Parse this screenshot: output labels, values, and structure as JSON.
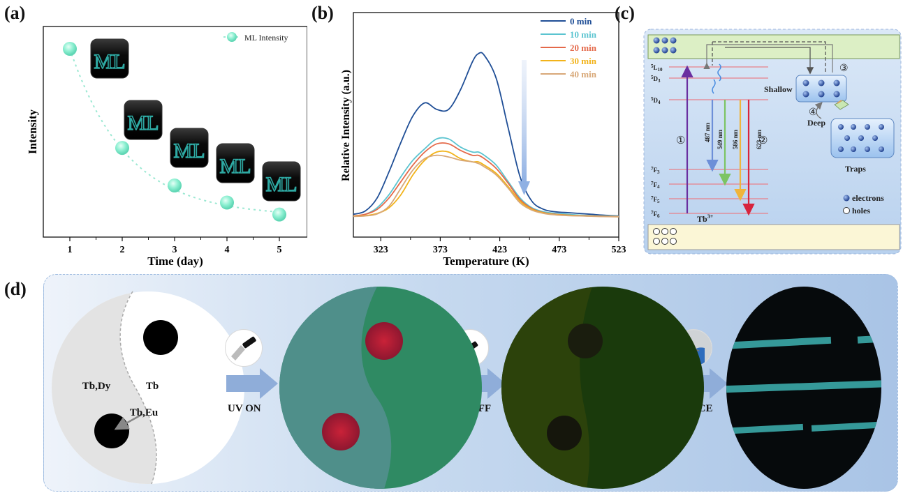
{
  "panels": {
    "a": "(a)",
    "b": "(b)",
    "c": "(c)",
    "d": "(d)"
  },
  "panel_a": {
    "xlabel": "Time (day)",
    "ylabel": "Intensity",
    "legend": "ML Intensity",
    "x_ticks": [
      "1",
      "2",
      "3",
      "4",
      "5"
    ],
    "inset_text": "ML",
    "marker_color": "#7fe8c9"
  },
  "panel_b": {
    "xlabel": "Temperature (K)",
    "ylabel": "Relative Intensity (a.u.)",
    "x_ticks": [
      "323",
      "373",
      "423",
      "473",
      "523"
    ]
  },
  "chart_data": [
    {
      "type": "scatter",
      "x": [
        1,
        2,
        3,
        4,
        5
      ],
      "y": [
        1.0,
        0.42,
        0.2,
        0.1,
        0.03
      ],
      "xlabel": "Time (day)",
      "ylabel": "Intensity",
      "legend": "top-right",
      "series": [
        {
          "name": "ML Intensity",
          "color": "#7fe8c9"
        }
      ]
    },
    {
      "type": "line",
      "xlabel": "Temperature (K)",
      "ylabel": "Relative Intensity (a.u.)",
      "xlim": [
        300,
        523
      ],
      "legend": "top-right",
      "series": [
        {
          "name": "0   min",
          "color": "#1f4e96",
          "x": [
            300,
            310,
            320,
            330,
            340,
            350,
            360,
            370,
            380,
            390,
            400,
            405,
            410,
            420,
            430,
            440,
            450,
            460,
            470,
            480,
            490,
            500,
            510,
            523
          ],
          "y": [
            0.02,
            0.04,
            0.12,
            0.28,
            0.46,
            0.62,
            0.7,
            0.66,
            0.66,
            0.78,
            0.95,
            1.0,
            0.99,
            0.85,
            0.55,
            0.25,
            0.1,
            0.05,
            0.035,
            0.03,
            0.025,
            0.02,
            0.015,
            0.01
          ]
        },
        {
          "name": "10 min",
          "color": "#5bc4d0",
          "x": [
            300,
            310,
            320,
            330,
            340,
            350,
            360,
            370,
            380,
            390,
            400,
            405,
            410,
            420,
            430,
            440,
            450,
            460,
            470,
            480,
            490,
            500,
            510,
            523
          ],
          "y": [
            0.01,
            0.02,
            0.06,
            0.14,
            0.25,
            0.35,
            0.42,
            0.48,
            0.48,
            0.43,
            0.4,
            0.4,
            0.38,
            0.32,
            0.22,
            0.12,
            0.06,
            0.035,
            0.025,
            0.02,
            0.015,
            0.012,
            0.01,
            0.008
          ]
        },
        {
          "name": "20 min",
          "color": "#e4694a",
          "x": [
            300,
            310,
            320,
            330,
            340,
            350,
            360,
            370,
            380,
            390,
            400,
            405,
            410,
            420,
            430,
            440,
            450,
            460,
            470,
            480,
            490,
            500,
            510,
            523
          ],
          "y": [
            0.01,
            0.02,
            0.05,
            0.12,
            0.22,
            0.32,
            0.4,
            0.45,
            0.45,
            0.41,
            0.38,
            0.38,
            0.36,
            0.3,
            0.21,
            0.11,
            0.055,
            0.03,
            0.02,
            0.015,
            0.012,
            0.01,
            0.008,
            0.006
          ]
        },
        {
          "name": "30 min",
          "color": "#f2b31a",
          "x": [
            300,
            310,
            320,
            330,
            340,
            350,
            360,
            370,
            380,
            390,
            400,
            405,
            410,
            420,
            430,
            440,
            450,
            460,
            470,
            480,
            490,
            500,
            510,
            523
          ],
          "y": [
            0.008,
            0.012,
            0.025,
            0.06,
            0.14,
            0.26,
            0.35,
            0.4,
            0.4,
            0.36,
            0.34,
            0.34,
            0.32,
            0.27,
            0.19,
            0.1,
            0.05,
            0.028,
            0.018,
            0.014,
            0.011,
            0.009,
            0.007,
            0.005
          ]
        },
        {
          "name": "40 min",
          "color": "#d8a878",
          "x": [
            300,
            310,
            320,
            330,
            340,
            350,
            360,
            370,
            380,
            390,
            400,
            405,
            410,
            420,
            430,
            440,
            450,
            460,
            470,
            480,
            490,
            500,
            510,
            523
          ],
          "y": [
            0.007,
            0.01,
            0.022,
            0.07,
            0.18,
            0.29,
            0.36,
            0.38,
            0.37,
            0.35,
            0.34,
            0.33,
            0.31,
            0.26,
            0.18,
            0.09,
            0.045,
            0.025,
            0.016,
            0.012,
            0.01,
            0.008,
            0.006,
            0.005
          ]
        }
      ]
    }
  ],
  "panel_c": {
    "levels_upper": [
      "5L10",
      "5D3"
    ],
    "level_5d4": "5D4",
    "levels_lower": [
      "7F3",
      "7F4",
      "7F5",
      "7F6"
    ],
    "transitions": [
      "487 nm",
      "549 nm",
      "586 nm",
      "623 nm"
    ],
    "step_1": "①",
    "step_2": "②",
    "step_3": "③",
    "step_4": "④",
    "shallow": "Shallow",
    "deep": "Deep",
    "traps": "Traps",
    "ion": "Tb3+",
    "legend_electrons": "electrons",
    "legend_holes": "holes"
  },
  "panel_d": {
    "region_tbdy": "Tb,Dy",
    "region_tb": "Tb",
    "region_tbeu": "Tb,Eu",
    "arrow_1": "UV ON",
    "arrow_2": "UV OFF",
    "arrow_3": "FORCE"
  }
}
